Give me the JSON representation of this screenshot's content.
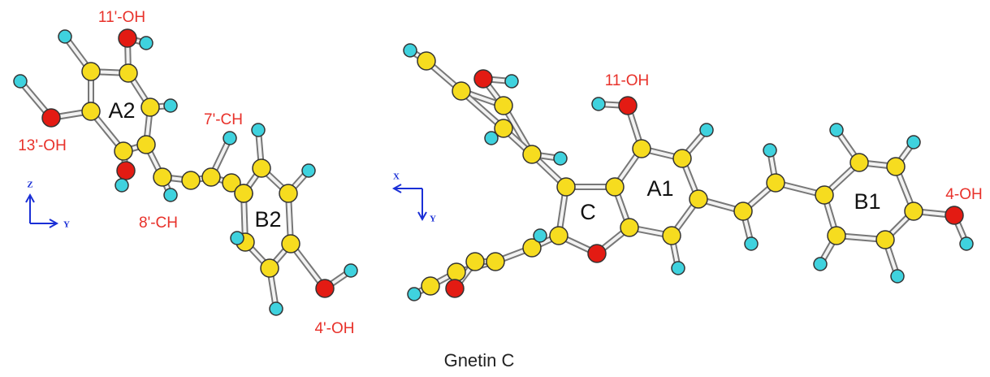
{
  "caption": "Gnetin C",
  "left_view": {
    "labels": [
      "11'-OH",
      "A2",
      "7'-CH",
      "13'-OH",
      "8'-CH",
      "B2",
      "4'-OH"
    ],
    "axes": [
      "Z",
      "Y"
    ]
  },
  "right_view": {
    "labels": [
      "11-OH",
      "A1",
      "C",
      "B1",
      "4-OH"
    ],
    "axes": [
      "X",
      "Y"
    ]
  }
}
